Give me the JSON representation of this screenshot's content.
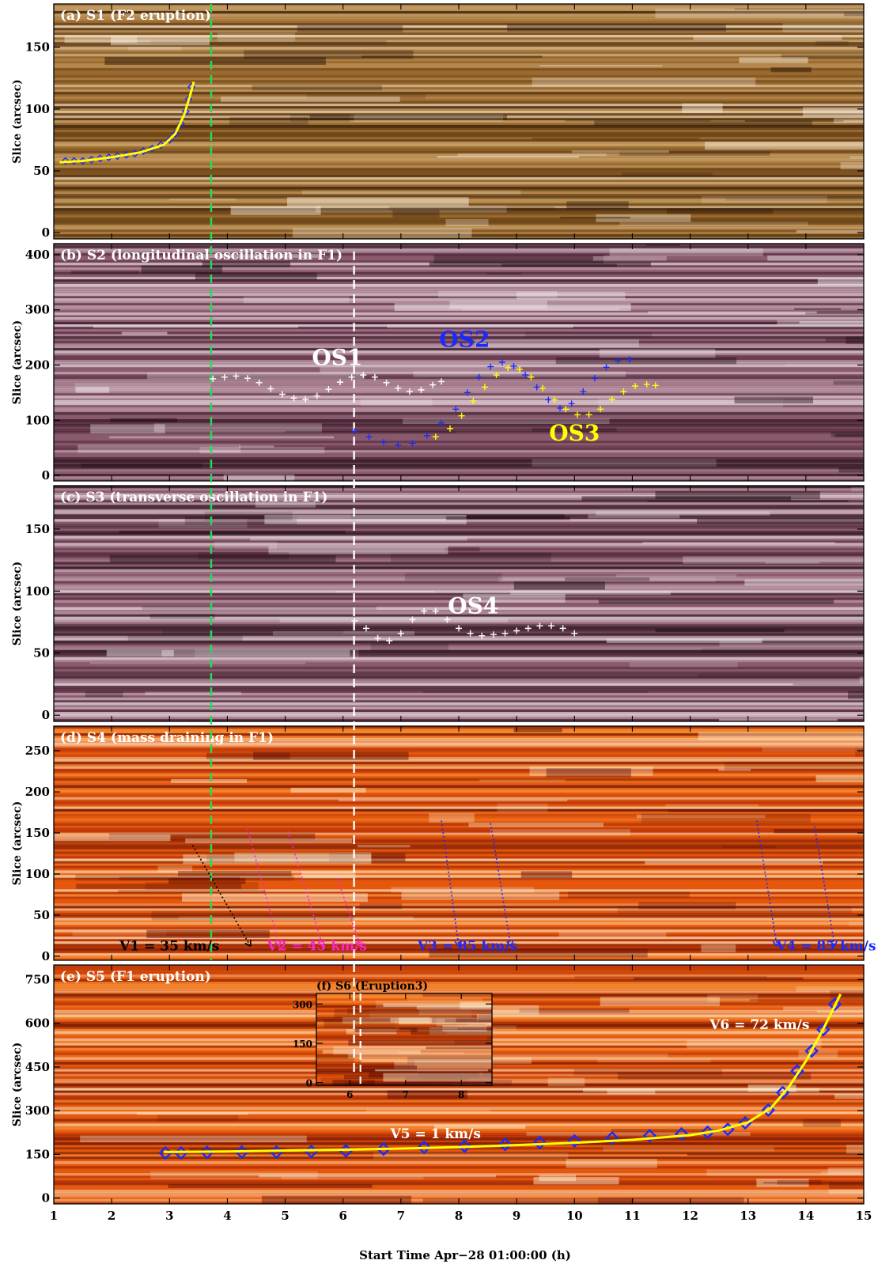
{
  "figure": {
    "xaxis_label": "Start Time Apr−28 01:00:00  (h)",
    "x_ticks": [
      "1",
      "2",
      "3",
      "4",
      "5",
      "6",
      "7",
      "8",
      "9",
      "10",
      "11",
      "12",
      "13",
      "14",
      "15"
    ],
    "green_line_time": 3.72,
    "white_line_time": 6.19,
    "colors": {
      "green_line": "#22dd55",
      "white_line": "#ffffff",
      "blue": "#1a2aff",
      "yellow": "#ffff00",
      "magenta": "#ff22cc",
      "white": "#ffffff"
    }
  },
  "chart_data": [
    {
      "id": "a",
      "type": "scatter",
      "title": "(a)  S1  (F2 eruption)",
      "ylabel": "Slice (arcsec)",
      "yticks": [
        "0",
        "50",
        "100",
        "150"
      ],
      "ylim": [
        -5,
        185
      ],
      "xlim": [
        1,
        15
      ],
      "colormap": [
        "#2a1406",
        "#5c3812",
        "#9a6a2e",
        "#d2ac74",
        "#fff4e4"
      ],
      "series": [
        {
          "color": "blue",
          "marker": "diamond",
          "points": [
            [
              1.2,
              58
            ],
            [
              1.35,
              58
            ],
            [
              1.5,
              58
            ],
            [
              1.65,
              59
            ],
            [
              1.8,
              60
            ],
            [
              1.95,
              61
            ],
            [
              2.1,
              62
            ],
            [
              2.25,
              63
            ],
            [
              2.4,
              64
            ],
            [
              2.55,
              66
            ],
            [
              2.7,
              68
            ],
            [
              2.85,
              71
            ],
            [
              3.0,
              75
            ],
            [
              3.1,
              80
            ],
            [
              3.2,
              88
            ],
            [
              3.28,
              98
            ],
            [
              3.33,
              108
            ],
            [
              3.38,
              118
            ]
          ]
        },
        {
          "color": "yellow",
          "marker": "line",
          "points": [
            [
              1.1,
              57
            ],
            [
              1.5,
              58
            ],
            [
              2.0,
              61
            ],
            [
              2.5,
              65
            ],
            [
              2.9,
              71
            ],
            [
              3.1,
              80
            ],
            [
              3.25,
              95
            ],
            [
              3.35,
              110
            ],
            [
              3.42,
              122
            ]
          ]
        }
      ]
    },
    {
      "id": "b",
      "type": "scatter",
      "title": "(b)  S2  (longitudinal oscillation in F1)",
      "ylabel": "Slice (arcsec)",
      "yticks": [
        "0",
        "100",
        "200",
        "300",
        "400"
      ],
      "ylim": [
        -10,
        420
      ],
      "xlim": [
        1,
        15
      ],
      "colormap": [
        "#1a0810",
        "#4a2034",
        "#8a5a6e",
        "#c9a9b6",
        "#f4ecf0"
      ],
      "annotations": [
        {
          "text": "OS1",
          "x": 5.9,
          "y": 200,
          "color": "white"
        },
        {
          "text": "OS2",
          "x": 8.1,
          "y": 233,
          "color": "blue"
        },
        {
          "text": "OS3",
          "x": 10.0,
          "y": 63,
          "color": "yellow"
        }
      ],
      "series": [
        {
          "name": "OS1",
          "color": "white",
          "marker": "plus",
          "points": [
            [
              3.75,
              175
            ],
            [
              3.95,
              178
            ],
            [
              4.15,
              180
            ],
            [
              4.35,
              176
            ],
            [
              4.55,
              168
            ],
            [
              4.75,
              157
            ],
            [
              4.95,
              147
            ],
            [
              5.15,
              140
            ],
            [
              5.35,
              138
            ],
            [
              5.55,
              144
            ],
            [
              5.75,
              156
            ],
            [
              5.95,
              169
            ],
            [
              6.15,
              178
            ],
            [
              6.35,
              182
            ],
            [
              6.55,
              178
            ],
            [
              6.75,
              168
            ],
            [
              6.95,
              158
            ],
            [
              7.15,
              152
            ],
            [
              7.35,
              155
            ],
            [
              7.55,
              164
            ],
            [
              7.7,
              170
            ]
          ]
        },
        {
          "name": "OS2",
          "color": "blue",
          "marker": "plus",
          "points": [
            [
              6.2,
              80
            ],
            [
              6.45,
              70
            ],
            [
              6.7,
              60
            ],
            [
              6.95,
              55
            ],
            [
              7.2,
              58
            ],
            [
              7.45,
              72
            ],
            [
              7.7,
              95
            ],
            [
              7.95,
              120
            ],
            [
              8.15,
              150
            ],
            [
              8.35,
              178
            ],
            [
              8.55,
              197
            ],
            [
              8.75,
              205
            ],
            [
              8.95,
              198
            ],
            [
              9.15,
              182
            ],
            [
              9.35,
              160
            ],
            [
              9.55,
              137
            ],
            [
              9.75,
              122
            ],
            [
              9.95,
              130
            ],
            [
              10.15,
              152
            ],
            [
              10.35,
              176
            ],
            [
              10.55,
              196
            ],
            [
              10.75,
              208
            ],
            [
              10.95,
              210
            ]
          ]
        },
        {
          "name": "OS3",
          "color": "yellow",
          "marker": "plus",
          "points": [
            [
              7.6,
              70
            ],
            [
              7.85,
              85
            ],
            [
              8.05,
              108
            ],
            [
              8.25,
              135
            ],
            [
              8.45,
              160
            ],
            [
              8.65,
              182
            ],
            [
              8.85,
              195
            ],
            [
              9.05,
              192
            ],
            [
              9.25,
              178
            ],
            [
              9.45,
              158
            ],
            [
              9.65,
              137
            ],
            [
              9.85,
              120
            ],
            [
              10.05,
              110
            ],
            [
              10.25,
              110
            ],
            [
              10.45,
              120
            ],
            [
              10.65,
              138
            ],
            [
              10.85,
              152
            ],
            [
              11.05,
              162
            ],
            [
              11.25,
              165
            ],
            [
              11.4,
              163
            ]
          ]
        }
      ]
    },
    {
      "id": "c",
      "type": "scatter",
      "title": "(c)  S3  (transverse oscillation in F1)",
      "ylabel": "Slice (arcsec)",
      "yticks": [
        "0",
        "50",
        "100",
        "150"
      ],
      "ylim": [
        -5,
        185
      ],
      "xlim": [
        1,
        15
      ],
      "colormap": [
        "#1a0810",
        "#4a2034",
        "#8a5a6e",
        "#c9a9b6",
        "#f4ecf0"
      ],
      "annotations": [
        {
          "text": "OS4",
          "x": 8.25,
          "y": 82,
          "color": "white"
        }
      ],
      "series": [
        {
          "name": "OS4",
          "color": "white",
          "marker": "plus",
          "points": [
            [
              6.2,
              76
            ],
            [
              6.4,
              70
            ],
            [
              6.6,
              62
            ],
            [
              6.8,
              60
            ],
            [
              7.0,
              66
            ],
            [
              7.2,
              77
            ],
            [
              7.4,
              84
            ],
            [
              7.6,
              84
            ],
            [
              7.8,
              77
            ],
            [
              8.0,
              70
            ],
            [
              8.2,
              66
            ],
            [
              8.4,
              64
            ],
            [
              8.6,
              65
            ],
            [
              8.8,
              66
            ],
            [
              9.0,
              68
            ],
            [
              9.2,
              70
            ],
            [
              9.4,
              72
            ],
            [
              9.6,
              72
            ],
            [
              9.8,
              70
            ],
            [
              10.0,
              66
            ]
          ]
        }
      ]
    },
    {
      "id": "d",
      "type": "line",
      "title": "(d)  S4  (mass draining in F1)",
      "ylabel": "Slice (arcsec)",
      "yticks": [
        "0",
        "50",
        "100",
        "150",
        "200",
        "250"
      ],
      "ylim": [
        -5,
        280
      ],
      "xlim": [
        1,
        15
      ],
      "colormap": [
        "#5a0a02",
        "#a82606",
        "#e4580e",
        "#fa9a3c",
        "#fff0d0"
      ],
      "annotations": [
        {
          "text": "V1 = 35 km/s",
          "x": 3.0,
          "y": 7,
          "color": "black"
        },
        {
          "text": "V2 = 45 km/s",
          "x": 5.55,
          "y": 7,
          "color": "magenta"
        },
        {
          "text": "V3 = 85 km/s",
          "x": 8.15,
          "y": 7,
          "color": "blue"
        },
        {
          "text": "V4 = 85 km/s",
          "x": 14.35,
          "y": 7,
          "color": "blue"
        }
      ],
      "series": [
        {
          "color": "black",
          "style": "dotted",
          "points": [
            [
              3.4,
              135
            ],
            [
              4.4,
              12
            ]
          ]
        },
        {
          "color": "magenta",
          "style": "dotted",
          "points": [
            [
              4.35,
              155
            ],
            [
              4.9,
              12
            ]
          ]
        },
        {
          "color": "magenta",
          "style": "dotted",
          "points": [
            [
              5.05,
              152
            ],
            [
              5.65,
              12
            ]
          ]
        },
        {
          "color": "magenta",
          "style": "dotted",
          "points": [
            [
              5.9,
              95
            ],
            [
              6.3,
              12
            ]
          ]
        },
        {
          "color": "blue",
          "style": "dotted",
          "points": [
            [
              7.7,
              165
            ],
            [
              8.0,
              12
            ]
          ]
        },
        {
          "color": "blue",
          "style": "dotted",
          "points": [
            [
              8.55,
              162
            ],
            [
              8.9,
              12
            ]
          ]
        },
        {
          "color": "blue",
          "style": "dotted",
          "points": [
            [
              13.15,
              165
            ],
            [
              13.5,
              12
            ]
          ]
        },
        {
          "color": "blue",
          "style": "dotted",
          "points": [
            [
              14.15,
              158
            ],
            [
              14.5,
              12
            ]
          ]
        }
      ]
    },
    {
      "id": "e",
      "type": "scatter",
      "title": "(e)  S5  (F1 eruption)",
      "ylabel": "Slice (arcsec)",
      "yticks": [
        "0",
        "150",
        "300",
        "450",
        "600",
        "750"
      ],
      "ylim": [
        -20,
        800
      ],
      "xlim": [
        1,
        15
      ],
      "colormap": [
        "#5a0a02",
        "#a82606",
        "#e4580e",
        "#fa9a3c",
        "#fff0d0"
      ],
      "annotations": [
        {
          "text": "V5 = 1 km/s",
          "x": 7.6,
          "y": 205,
          "color": "white"
        },
        {
          "text": "V6 = 72 km/s",
          "x": 13.2,
          "y": 580,
          "color": "white"
        }
      ],
      "series": [
        {
          "color": "blue",
          "marker": "diamond",
          "points": [
            [
              2.93,
              155
            ],
            [
              3.2,
              155
            ],
            [
              3.65,
              157
            ],
            [
              4.25,
              158
            ],
            [
              4.85,
              158
            ],
            [
              5.45,
              160
            ],
            [
              6.05,
              162
            ],
            [
              6.7,
              168
            ],
            [
              7.4,
              174
            ],
            [
              8.1,
              178
            ],
            [
              8.8,
              184
            ],
            [
              9.4,
              190
            ],
            [
              10.0,
              196
            ],
            [
              10.65,
              206
            ],
            [
              11.3,
              214
            ],
            [
              11.85,
              220
            ],
            [
              12.3,
              226
            ],
            [
              12.65,
              236
            ],
            [
              12.95,
              258
            ],
            [
              13.35,
              302
            ],
            [
              13.6,
              362
            ],
            [
              13.85,
              436
            ],
            [
              14.1,
              505
            ],
            [
              14.3,
              578
            ],
            [
              14.5,
              665
            ]
          ]
        },
        {
          "color": "yellow",
          "marker": "line",
          "points": [
            [
              2.9,
              158
            ],
            [
              4.0,
              160
            ],
            [
              5.0,
              163
            ],
            [
              6.0,
              166
            ],
            [
              7.0,
              170
            ],
            [
              8.0,
              175
            ],
            [
              9.0,
              182
            ],
            [
              10.0,
              190
            ],
            [
              11.0,
              200
            ],
            [
              12.0,
              216
            ],
            [
              12.5,
              232
            ],
            [
              13.0,
              260
            ],
            [
              13.4,
              310
            ],
            [
              13.7,
              380
            ],
            [
              14.0,
              470
            ],
            [
              14.3,
              580
            ],
            [
              14.6,
              700
            ]
          ]
        }
      ]
    },
    {
      "id": "f",
      "type": "line",
      "inset_of": "e",
      "title": "(f)      S6    (Eruption3)",
      "yticks": [
        "0",
        "150",
        "300"
      ],
      "xticks": [
        "6",
        "7",
        "8"
      ],
      "ylim": [
        -10,
        340
      ],
      "xlim": [
        5.4,
        8.55
      ],
      "colormap": [
        "#5a0a02",
        "#a82606",
        "#e4580e",
        "#fa9a3c",
        "#fff0d0"
      ]
    }
  ]
}
